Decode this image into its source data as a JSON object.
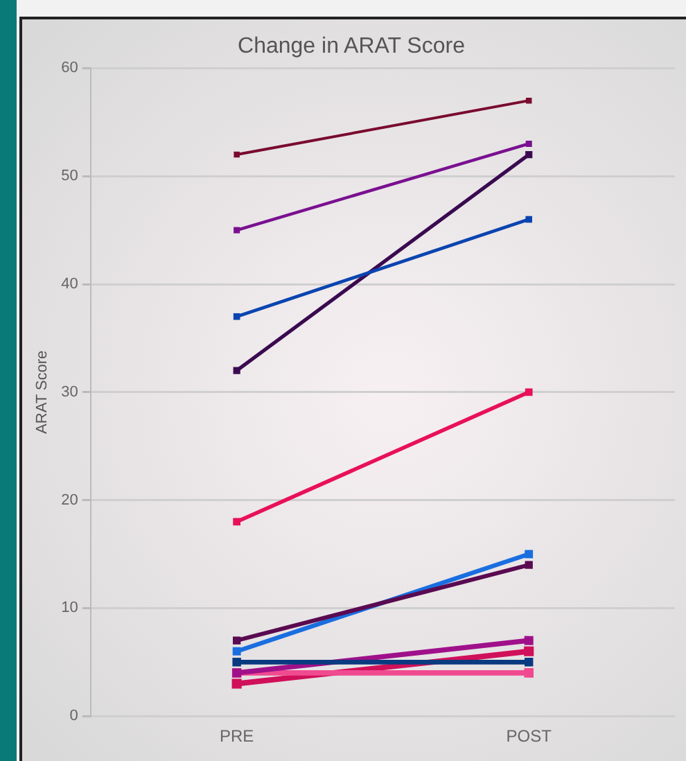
{
  "chart_data": {
    "type": "line",
    "title": "Change in ARAT Score",
    "ylabel": "ARAT Score",
    "categories": [
      "PRE",
      "POST"
    ],
    "series": [
      {
        "color": "#7a0a2e",
        "values": [
          52,
          57
        ]
      },
      {
        "color": "#7a1090",
        "values": [
          45,
          53
        ]
      },
      {
        "color": "#0a44b0",
        "values": [
          37,
          46
        ]
      },
      {
        "color": "#3a0a50",
        "values": [
          32,
          52
        ]
      },
      {
        "color": "#e8105a",
        "values": [
          18,
          30
        ]
      },
      {
        "color": "#5a0a50",
        "values": [
          7,
          14
        ]
      },
      {
        "color": "#1a6ee0",
        "values": [
          6,
          15
        ]
      },
      {
        "color": "#0a3a80",
        "values": [
          5,
          5
        ]
      },
      {
        "color": "#a0108a",
        "values": [
          4,
          7
        ]
      },
      {
        "color": "#f04a90",
        "values": [
          4,
          4
        ]
      },
      {
        "color": "#d0105a",
        "values": [
          3,
          6
        ]
      }
    ],
    "ylim": [
      0,
      60
    ],
    "yticks": [
      0,
      10,
      20,
      30,
      40,
      50,
      60
    ],
    "grid": "y",
    "marker": "square",
    "line_style": "solid",
    "legend": false
  }
}
